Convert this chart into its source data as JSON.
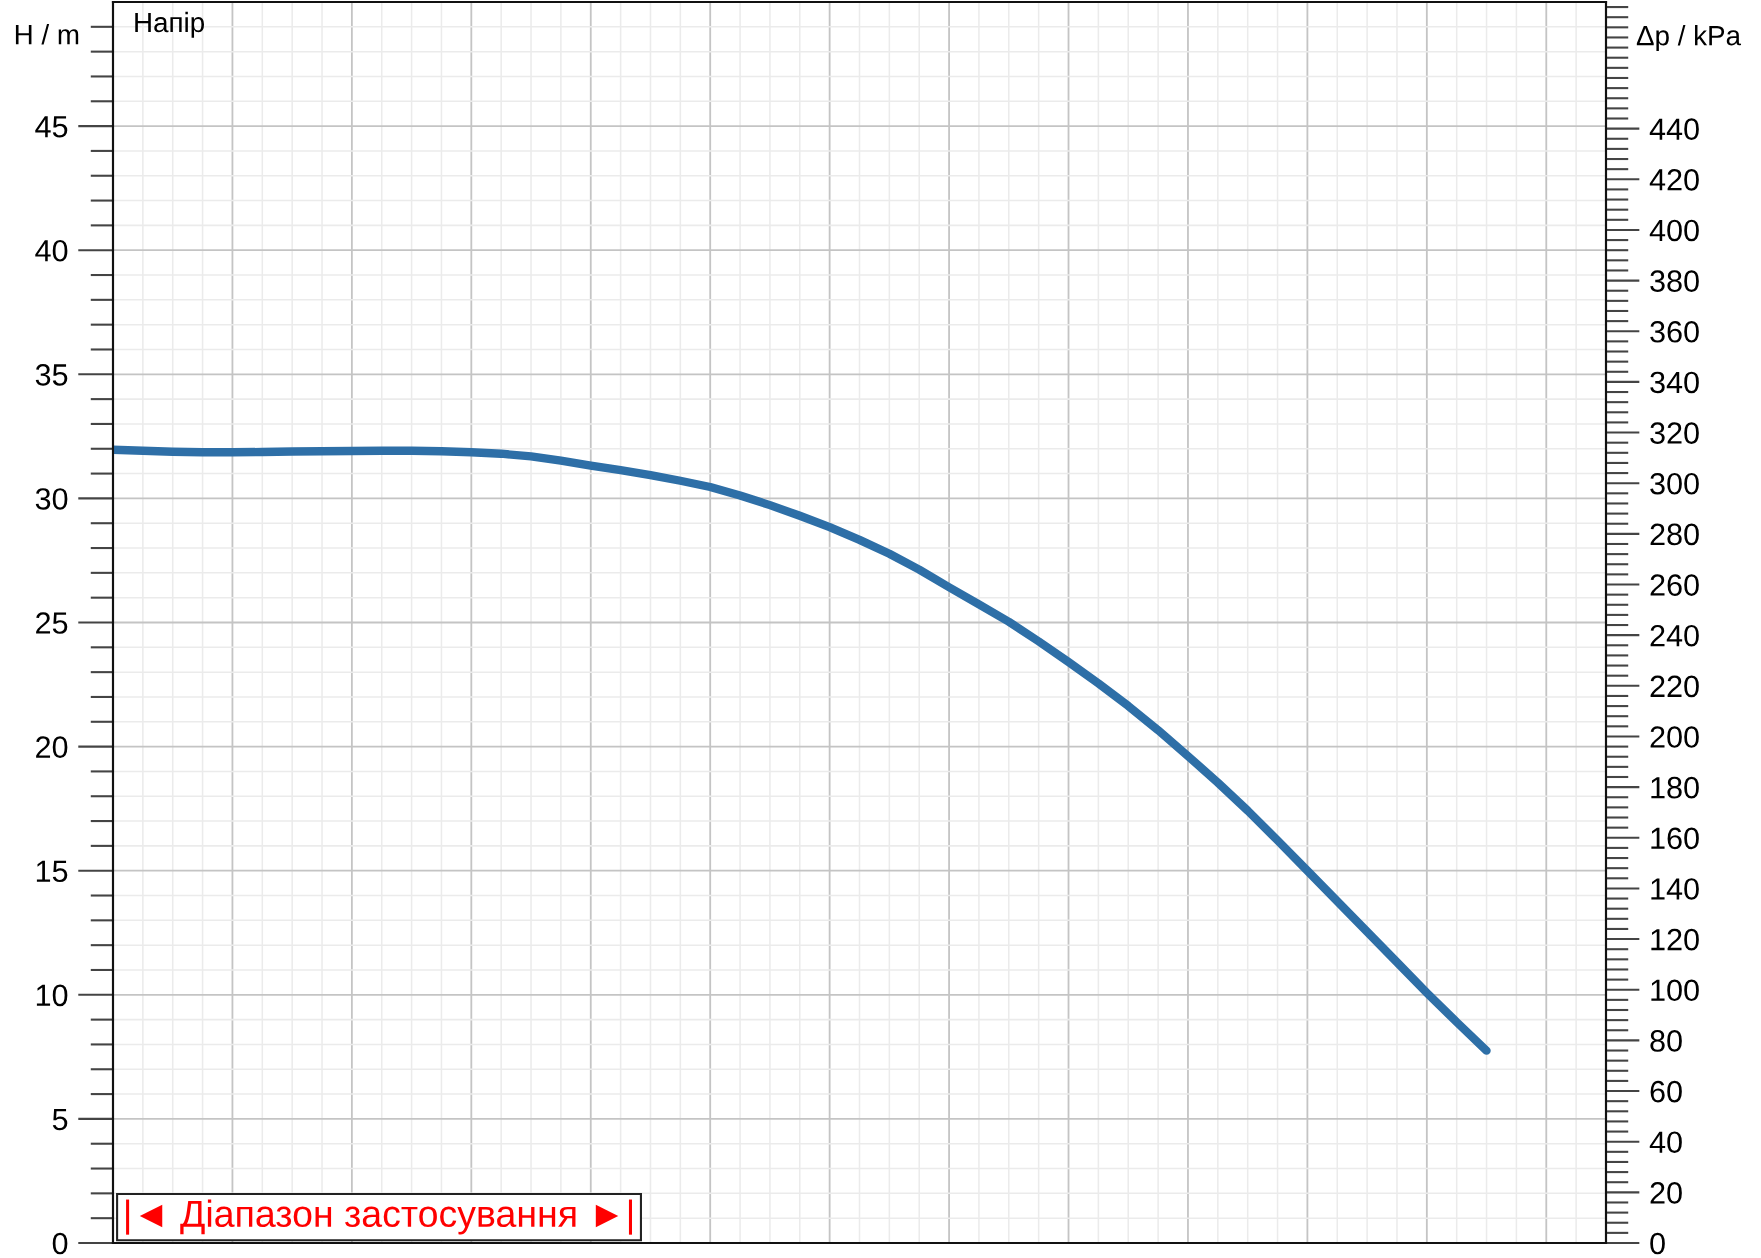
{
  "chart_data": {
    "type": "line",
    "title": "Напір",
    "ylabel": "H / m",
    "y2label": "Δp / kPa",
    "annotations": [
      "|◄ Діапазон застосування ►|"
    ],
    "categories": [
      null,
      null,
      null,
      null,
      null,
      null,
      null,
      null,
      null,
      null,
      null,
      null,
      null,
      null,
      null,
      null,
      null,
      null,
      null,
      null,
      null,
      null,
      null,
      null,
      null,
      null,
      null,
      null,
      null,
      null,
      null,
      null,
      null,
      null,
      null,
      null,
      null,
      null,
      null,
      null,
      null,
      null,
      null,
      null,
      null,
      null,
      null,
      null,
      null,
      null,
      null
    ],
    "series": [
      {
        "color": "#2e6fa7",
        "values": [
          31.96,
          31.92,
          31.88,
          31.86,
          31.86,
          31.87,
          31.89,
          31.9,
          31.91,
          31.92,
          31.92,
          31.9,
          31.86,
          31.8,
          31.69,
          31.52,
          31.32,
          31.14,
          30.94,
          30.71,
          30.46,
          30.12,
          29.73,
          29.3,
          28.84,
          28.33,
          27.77,
          27.13,
          26.42,
          25.73,
          25.03,
          24.24,
          23.41,
          22.55,
          21.64,
          20.66,
          19.62,
          18.55,
          17.42,
          16.22,
          15.0,
          13.77,
          12.54,
          11.31,
          10.08,
          8.9,
          7.75,
          null,
          null,
          null,
          null
        ]
      }
    ],
    "ylim": [
      0,
      50
    ],
    "yticks": [
      0,
      {
        "value": 1,
        "label": null
      },
      {
        "value": 2,
        "label": null
      },
      {
        "value": 3,
        "label": null
      },
      {
        "value": 4,
        "label": null
      },
      5,
      {
        "value": 6,
        "label": null
      },
      {
        "value": 7,
        "label": null
      },
      {
        "value": 8,
        "label": null
      },
      {
        "value": 9,
        "label": null
      },
      10,
      {
        "value": 11,
        "label": null
      },
      {
        "value": 12,
        "label": null
      },
      {
        "value": 13,
        "label": null
      },
      {
        "value": 14,
        "label": null
      },
      15,
      {
        "value": 16,
        "label": null
      },
      {
        "value": 17,
        "label": null
      },
      {
        "value": 18,
        "label": null
      },
      {
        "value": 19,
        "label": null
      },
      20,
      {
        "value": 21,
        "label": null
      },
      {
        "value": 22,
        "label": null
      },
      {
        "value": 23,
        "label": null
      },
      {
        "value": 24,
        "label": null
      },
      25,
      {
        "value": 26,
        "label": null
      },
      {
        "value": 27,
        "label": null
      },
      {
        "value": 28,
        "label": null
      },
      {
        "value": 29,
        "label": null
      },
      30,
      {
        "value": 31,
        "label": null
      },
      {
        "value": 32,
        "label": null
      },
      {
        "value": 33,
        "label": null
      },
      {
        "value": 34,
        "label": null
      },
      35,
      {
        "value": 36,
        "label": null
      },
      {
        "value": 37,
        "label": null
      },
      {
        "value": 38,
        "label": null
      },
      {
        "value": 39,
        "label": null
      },
      40,
      {
        "value": 41,
        "label": null
      },
      {
        "value": 42,
        "label": null
      },
      {
        "value": 43,
        "label": null
      },
      {
        "value": 44,
        "label": null
      },
      45,
      {
        "value": 46,
        "label": null
      },
      {
        "value": 47,
        "label": null
      },
      {
        "value": 48,
        "label": null
      },
      {
        "value": 49,
        "label": null
      }
    ],
    "y2lim": [
      0,
      490
    ],
    "y2ticks": [
      0,
      20,
      40,
      60,
      80,
      100,
      120,
      140,
      160,
      180,
      200,
      220,
      240,
      260,
      280,
      300,
      320,
      340,
      360,
      380,
      400,
      420,
      440
    ],
    "grid": true,
    "tick_labels": "y"
  }
}
